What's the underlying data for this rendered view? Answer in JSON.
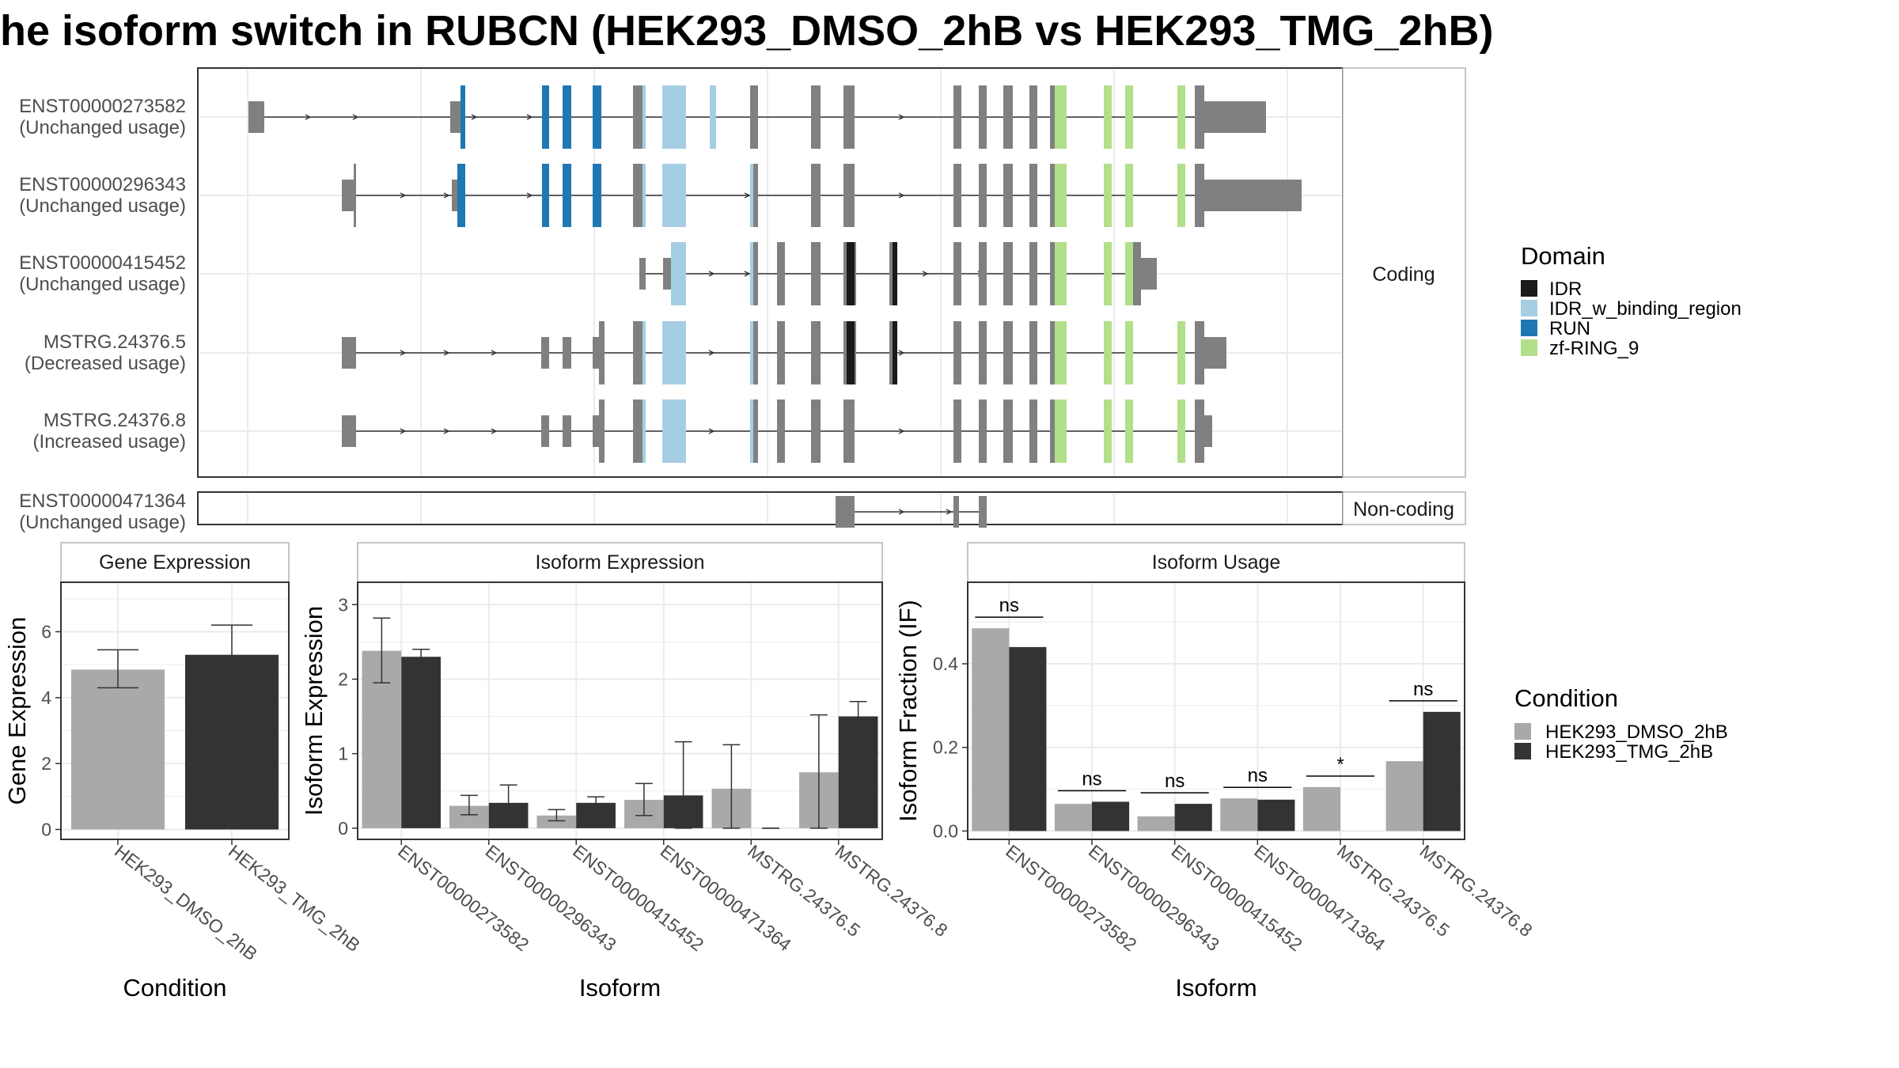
{
  "title": "he isoform switch in RUBCN (HEK293_DMSO_2hB vs HEK293_TMG_2hB)",
  "colors": {
    "DMSO": "#a9a9a9",
    "TMG": "#333333",
    "exon": "#808080",
    "IDR": "#1a1a1a",
    "IDR_w_binding_region": "#a6cee3",
    "RUN": "#1f78b4",
    "zf-RING_9": "#b2df8a"
  },
  "structure": {
    "facets": [
      "Coding",
      "Non-coding"
    ],
    "transcripts": [
      {
        "id": "ENST00000273582",
        "usage": "(Unchanged usage)",
        "facet": "Coding"
      },
      {
        "id": "ENST00000296343",
        "usage": "(Unchanged usage)",
        "facet": "Coding"
      },
      {
        "id": "ENST00000415452",
        "usage": "(Unchanged usage)",
        "facet": "Coding"
      },
      {
        "id": "MSTRG.24376.5",
        "usage": "(Decreased usage)",
        "facet": "Coding"
      },
      {
        "id": "MSTRG.24376.8",
        "usage": "(Increased usage)",
        "facet": "Coding"
      },
      {
        "id": "ENST00000471364",
        "usage": "(Unchanged usage)",
        "facet": "Non-coding"
      }
    ],
    "domain_legend_title": "Domain",
    "domain_legend": [
      "IDR",
      "IDR_w_binding_region",
      "RUN",
      "zf-RING_9"
    ]
  },
  "condition_legend": {
    "title": "Condition",
    "items": [
      "HEK293_DMSO_2hB",
      "HEK293_TMG_2hB"
    ]
  },
  "chart_data": [
    {
      "type": "bar",
      "title": "Gene Expression",
      "xlabel": "Condition",
      "ylabel": "Gene Expression",
      "categories": [
        "HEK293_DMSO_2hB",
        "HEK293_TMG_2hB"
      ],
      "values": [
        4.85,
        5.3
      ],
      "err_low": [
        4.3,
        4.4
      ],
      "err_high": [
        5.45,
        6.2
      ],
      "ylim": [
        -0.3,
        7.5
      ],
      "yticks": [
        0,
        2,
        4,
        6
      ]
    },
    {
      "type": "bar",
      "title": "Isoform Expression",
      "xlabel": "Isoform",
      "ylabel": "Isoform Expression",
      "categories": [
        "ENST00000273582",
        "ENST00000296343",
        "ENST00000415452",
        "ENST00000471364",
        "MSTRG.24376.5",
        "MSTRG.24376.8"
      ],
      "series": [
        {
          "name": "HEK293_DMSO_2hB",
          "values": [
            2.38,
            0.3,
            0.17,
            0.38,
            0.53,
            0.75
          ],
          "err_low": [
            1.95,
            0.18,
            0.1,
            0.17,
            0.0,
            0.0
          ],
          "err_high": [
            2.82,
            0.44,
            0.25,
            0.6,
            1.12,
            1.52
          ]
        },
        {
          "name": "HEK293_TMG_2hB",
          "values": [
            2.3,
            0.34,
            0.34,
            0.44,
            0.0,
            1.5
          ],
          "err_low": [
            2.2,
            0.1,
            0.27,
            0.0,
            0.0,
            1.3
          ],
          "err_high": [
            2.4,
            0.58,
            0.42,
            1.16,
            0.0,
            1.7
          ]
        }
      ],
      "ylim": [
        -0.15,
        3.3
      ],
      "yticks": [
        0,
        1,
        2,
        3
      ]
    },
    {
      "type": "bar",
      "title": "Isoform Usage",
      "xlabel": "Isoform",
      "ylabel": "Isoform Fraction (IF)",
      "categories": [
        "ENST00000273582",
        "ENST00000296343",
        "ENST00000415452",
        "ENST00000471364",
        "MSTRG.24376.5",
        "MSTRG.24376.8"
      ],
      "series": [
        {
          "name": "HEK293_DMSO_2hB",
          "values": [
            0.485,
            0.065,
            0.035,
            0.078,
            0.105,
            0.167
          ]
        },
        {
          "name": "HEK293_TMG_2hB",
          "values": [
            0.44,
            0.07,
            0.065,
            0.075,
            0.0,
            0.285
          ]
        }
      ],
      "significance": [
        "ns",
        "ns",
        "ns",
        "ns",
        "*",
        "ns"
      ],
      "ylim": [
        -0.02,
        0.595
      ],
      "yticks": [
        0.0,
        0.2,
        0.4
      ],
      "ytick_labels": [
        "0.0",
        "0.2",
        "0.4"
      ]
    }
  ]
}
